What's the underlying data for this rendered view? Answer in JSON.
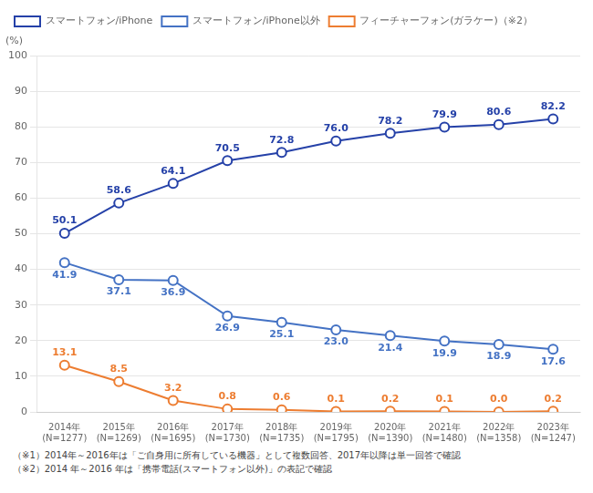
{
  "chart_data": {
    "type": "line",
    "categories": [
      "2014年\n(N=1277)",
      "2015年\n(N=1269)",
      "2016年\n(N=1695)",
      "2017年\n(N=1730)",
      "2018年\n(N=1735)",
      "2019年\n(N=1795)",
      "2020年\n(N=1390)",
      "2021年\n(N=1480)",
      "2022年\n(N=1358)",
      "2023年\n(N=1247)"
    ],
    "series": [
      {
        "name": "スマートフォン/iPhone",
        "color": "#2541a8",
        "marker": "circle",
        "values": [
          50.1,
          58.6,
          64.1,
          70.5,
          72.8,
          76.0,
          78.2,
          79.9,
          80.6,
          82.2
        ],
        "value_labels": [
          "50.1",
          "58.6",
          "64.1",
          "70.5",
          "72.8",
          "76.0",
          "78.2",
          "79.9",
          "80.6",
          "82.2"
        ]
      },
      {
        "name": "スマートフォン/iPhone以外",
        "color": "#4472c4",
        "marker": "circle",
        "values": [
          41.9,
          37.1,
          36.9,
          26.9,
          25.1,
          23.0,
          21.4,
          19.9,
          18.9,
          17.6
        ],
        "value_labels": [
          "41.9",
          "37.1",
          "36.9",
          "26.9",
          "25.1",
          "23.0",
          "21.4",
          "19.9",
          "18.9",
          "17.6"
        ]
      },
      {
        "name": "フィーチャーフォン(ガラケー)（※2）",
        "color": "#ed7d31",
        "marker": "circle",
        "values": [
          13.1,
          8.5,
          3.2,
          0.8,
          0.6,
          0.1,
          0.2,
          0.1,
          0.0,
          0.2
        ],
        "value_labels": [
          "13.1",
          "8.5",
          "3.2",
          "0.8",
          "0.6",
          "0.1",
          "0.2",
          "0.1",
          "0.0",
          "0.2"
        ]
      }
    ],
    "ylabel": "(%)",
    "ylim": [
      0,
      100
    ],
    "yticks": [
      0,
      10,
      20,
      30,
      40,
      50,
      60,
      70,
      80,
      90,
      100
    ],
    "grid": "y",
    "legend": "upper left",
    "data_labels": true,
    "annotations": [
      "（※1）2014年～2016年は「ご自身用に所有している機器」として複数回答、2017年以降は単一回答で確認",
      "（※2）2014 年～2016 年は「携帯電話(スマートフォン以外)」の表記で確認"
    ]
  }
}
